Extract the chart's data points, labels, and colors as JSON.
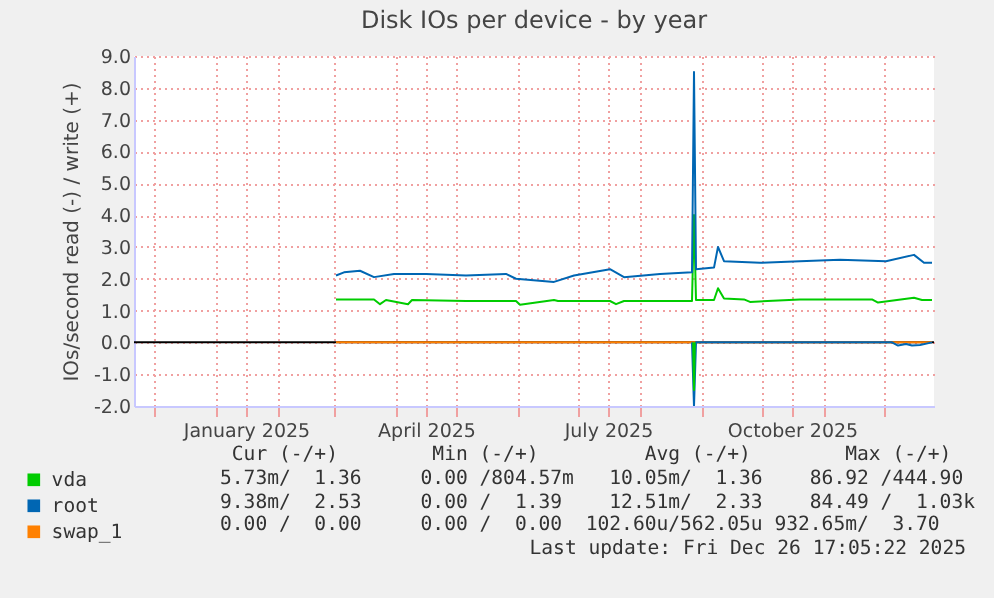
{
  "chart_data": {
    "type": "line",
    "title": "Disk IOs per device - by year",
    "ylabel": "IOs/second read (-) / write (+)",
    "xlim": [
      "2024-11-21",
      "2025-12-26"
    ],
    "xticks": [
      {
        "value": "2024-12-01",
        "label": null
      },
      {
        "value": "2025-01-01",
        "label": null
      },
      {
        "value": "2025-01-16",
        "label": "January 2025"
      },
      {
        "value": "2025-02-01",
        "label": null
      },
      {
        "value": "2025-03-01",
        "label": null
      },
      {
        "value": "2025-04-01",
        "label": null
      },
      {
        "value": "2025-04-16",
        "label": "April 2025"
      },
      {
        "value": "2025-05-01",
        "label": null
      },
      {
        "value": "2025-06-01",
        "label": null
      },
      {
        "value": "2025-07-01",
        "label": null
      },
      {
        "value": "2025-07-16",
        "label": "July 2025"
      },
      {
        "value": "2025-08-01",
        "label": null
      },
      {
        "value": "2025-09-01",
        "label": null
      },
      {
        "value": "2025-10-01",
        "label": null
      },
      {
        "value": "2025-10-16",
        "label": "October 2025"
      },
      {
        "value": "2025-11-01",
        "label": null
      },
      {
        "value": "2025-12-01",
        "label": null
      }
    ],
    "ylim": [
      -2,
      9
    ],
    "yticks": [
      {
        "value": -2,
        "label": "-2.0"
      },
      {
        "value": -1,
        "label": "-1.0"
      },
      {
        "value": 0,
        "label": "0.0"
      },
      {
        "value": 1,
        "label": "1.0"
      },
      {
        "value": 2,
        "label": "2.0"
      },
      {
        "value": 3,
        "label": "3.0"
      },
      {
        "value": 4,
        "label": "4.0"
      },
      {
        "value": 5,
        "label": "5.0"
      },
      {
        "value": 6,
        "label": "6.0"
      },
      {
        "value": 7,
        "label": "7.0"
      },
      {
        "value": 8,
        "label": "8.0"
      },
      {
        "value": 9,
        "label": "9.0"
      }
    ],
    "grid": true,
    "legend": "bottom left",
    "marker": "none",
    "line_style": "solid",
    "ref_lines": [
      {
        "axis": "y",
        "value": 0,
        "label": null,
        "color": "#000000"
      }
    ],
    "series": [
      {
        "name": "vda",
        "color": "#00cc00",
        "x": [
          "2025-03-02",
          "2025-03-21",
          "2025-03-24",
          "2025-03-27",
          "2025-04-07",
          "2025-04-09",
          "2025-05-06",
          "2025-05-31",
          "2025-06-02",
          "2025-06-19",
          "2025-06-21",
          "2025-07-17",
          "2025-07-20",
          "2025-07-24",
          "2025-08-11",
          "2025-08-27",
          "2025-08-28",
          "2025-08-29",
          "2025-09-07",
          "2025-09-09",
          "2025-09-12",
          "2025-09-22",
          "2025-09-25",
          "2025-10-20",
          "2025-11-09",
          "2025-11-25",
          "2025-11-28",
          "2025-12-16",
          "2025-12-20",
          "2025-12-25"
        ],
        "values": [
          1.35,
          1.35,
          1.2,
          1.33,
          1.2,
          1.33,
          1.3,
          1.3,
          1.18,
          1.33,
          1.3,
          1.3,
          1.2,
          1.3,
          1.3,
          1.3,
          4.0,
          1.33,
          1.33,
          1.7,
          1.38,
          1.35,
          1.27,
          1.35,
          1.35,
          1.35,
          1.25,
          1.4,
          1.33,
          1.33
        ]
      },
      {
        "name": "root",
        "color": "#0066b3",
        "x": [
          "2025-03-02",
          "2025-03-06",
          "2025-03-14",
          "2025-03-21",
          "2025-03-31",
          "2025-04-16",
          "2025-05-06",
          "2025-05-26",
          "2025-05-31",
          "2025-06-19",
          "2025-06-29",
          "2025-07-17",
          "2025-07-24",
          "2025-08-11",
          "2025-08-27",
          "2025-08-28",
          "2025-08-29",
          "2025-09-07",
          "2025-09-09",
          "2025-09-12",
          "2025-09-30",
          "2025-10-20",
          "2025-11-09",
          "2025-12-02",
          "2025-12-16",
          "2025-12-21",
          "2025-12-25"
        ],
        "values": [
          2.1,
          2.2,
          2.25,
          2.05,
          2.15,
          2.15,
          2.1,
          2.15,
          2.0,
          1.9,
          2.1,
          2.3,
          2.05,
          2.15,
          2.2,
          8.5,
          2.3,
          2.35,
          3.0,
          2.55,
          2.5,
          2.55,
          2.6,
          2.55,
          2.75,
          2.5,
          2.5
        ]
      },
      {
        "name": "swap_1",
        "color": "#ff8000",
        "x": [
          "2025-03-02",
          "2025-12-25"
        ],
        "values": [
          0,
          0
        ]
      },
      {
        "color": "#0066b3",
        "x": [
          "2025-08-27",
          "2025-08-28",
          "2025-08-29",
          "2025-12-05",
          "2025-12-08",
          "2025-12-12",
          "2025-12-15",
          "2025-12-19",
          "2025-12-25"
        ],
        "values": [
          0,
          -2.0,
          0,
          0,
          -0.1,
          -0.05,
          -0.1,
          -0.08,
          0
        ]
      },
      {
        "color": "#00cc00",
        "x": [
          "2025-08-27T14:00",
          "2025-08-28",
          "2025-08-28T10:00"
        ],
        "values": [
          0,
          -1.5,
          0
        ]
      }
    ],
    "annotations": [
      " Cur (-/+)        Min (-/+)         Avg (-/+)        Max (-/+)",
      "5.73m/  1.36     0.00 /804.57m   10.05m/  1.36    86.92 /444.90",
      "9.38m/  2.53     0.00 /  1.39    12.51m/  2.33    84.49 /  1.03k",
      "0.00 /  0.00     0.00 /  0.00  102.60u/562.05u 932.65m/  3.70",
      "Last update: Fri Dec 26 17:05:22 2025"
    ]
  }
}
